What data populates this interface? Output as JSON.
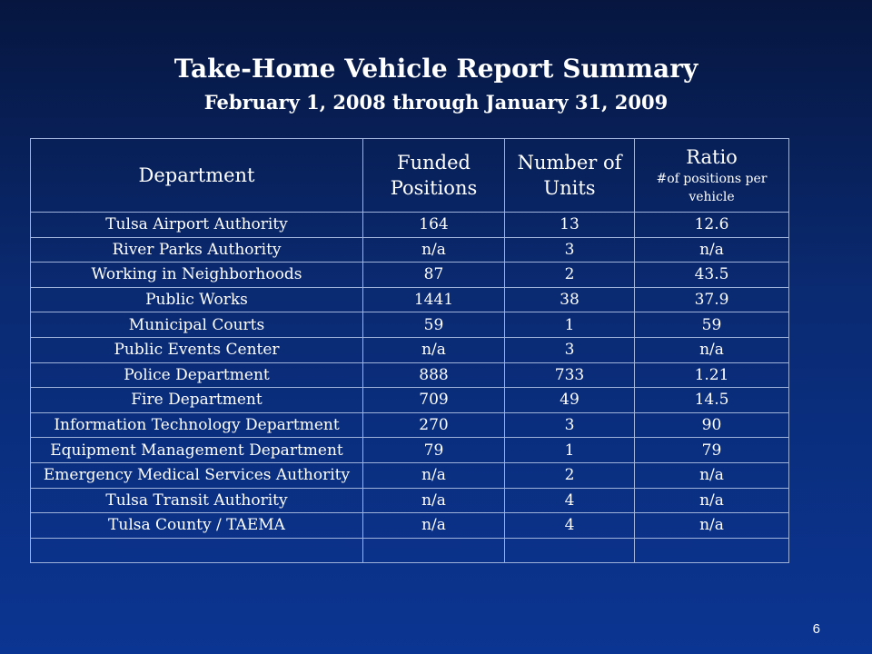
{
  "slide": {
    "title": "Take-Home Vehicle Report Summary",
    "subtitle": "February 1, 2008 through January 31, 2009",
    "page_number": "6"
  },
  "table": {
    "headers": {
      "department": "Department",
      "funded_line1": "Funded",
      "funded_line2": "Positions",
      "units_line1": "Number of",
      "units_line2": "Units",
      "ratio": "Ratio",
      "ratio_sub": "#of positions per vehicle"
    },
    "rows": [
      {
        "department": "Tulsa Airport Authority",
        "funded": "164",
        "units": "13",
        "ratio": "12.6"
      },
      {
        "department": "River Parks Authority",
        "funded": "n/a",
        "units": "3",
        "ratio": "n/a"
      },
      {
        "department": "Working in Neighborhoods",
        "funded": "87",
        "units": "2",
        "ratio": "43.5"
      },
      {
        "department": "Public Works",
        "funded": "1441",
        "units": "38",
        "ratio": "37.9"
      },
      {
        "department": "Municipal Courts",
        "funded": "59",
        "units": "1",
        "ratio": "59"
      },
      {
        "department": "Public Events Center",
        "funded": "n/a",
        "units": "3",
        "ratio": "n/a"
      },
      {
        "department": "Police Department",
        "funded": "888",
        "units": "733",
        "ratio": "1.21"
      },
      {
        "department": "Fire Department",
        "funded": "709",
        "units": "49",
        "ratio": "14.5"
      },
      {
        "department": "Information Technology Department",
        "funded": "270",
        "units": "3",
        "ratio": "90"
      },
      {
        "department": "Equipment Management Department",
        "funded": "79",
        "units": "1",
        "ratio": "79"
      },
      {
        "department": "Emergency Medical Services Authority",
        "funded": "n/a",
        "units": "2",
        "ratio": "n/a"
      },
      {
        "department": "Tulsa Transit Authority",
        "funded": "n/a",
        "units": "4",
        "ratio": "n/a"
      },
      {
        "department": "Tulsa County / TAEMA",
        "funded": "n/a",
        "units": "4",
        "ratio": "n/a"
      }
    ]
  }
}
